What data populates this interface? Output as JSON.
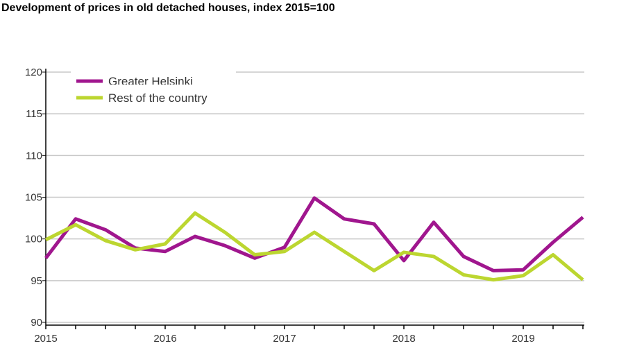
{
  "chart_data": {
    "type": "line",
    "title": "Development of prices in old detached houses, index 2015=100",
    "xlabel": "",
    "ylabel": "",
    "x": [
      "2015Q1",
      "2015Q2",
      "2015Q3",
      "2015Q4",
      "2016Q1",
      "2016Q2",
      "2016Q3",
      "2016Q4",
      "2017Q1",
      "2017Q2",
      "2017Q3",
      "2017Q4",
      "2018Q1",
      "2018Q2",
      "2018Q3",
      "2018Q4",
      "2019Q1",
      "2019Q2",
      "2019Q3"
    ],
    "x_tick_labels": [
      "2015",
      "2016",
      "2017",
      "2018",
      "2019"
    ],
    "y_ticks": [
      90,
      95,
      100,
      105,
      110,
      115,
      120
    ],
    "ylim": [
      90,
      120
    ],
    "grid": true,
    "legend_position": "top-left",
    "series": [
      {
        "name": "Greater Helsinki",
        "color": "#a0168e",
        "values": [
          97.7,
          102.4,
          101.1,
          98.9,
          98.5,
          100.3,
          99.2,
          97.7,
          99.0,
          104.9,
          102.4,
          101.8,
          97.4,
          102.0,
          97.9,
          96.2,
          96.3,
          99.6,
          102.6
        ]
      },
      {
        "name": "Rest of the country",
        "color": "#bcd630",
        "values": [
          99.9,
          101.7,
          99.8,
          98.7,
          99.4,
          103.1,
          100.8,
          98.1,
          98.5,
          100.8,
          98.5,
          96.2,
          98.4,
          97.9,
          95.7,
          95.1,
          95.6,
          98.1,
          95.1
        ]
      }
    ]
  }
}
